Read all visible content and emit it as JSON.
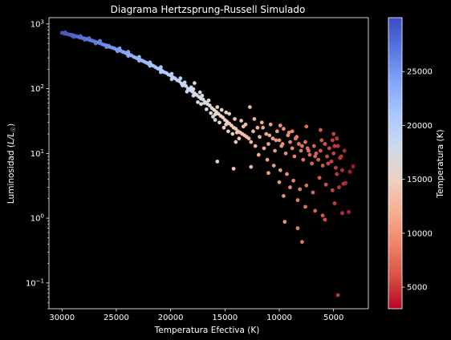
{
  "chart_data": {
    "type": "scatter",
    "title": "Diagrama Hertzsprung-Russell Simulado",
    "xlabel": "Temperatura Efectiva (K)",
    "ylabel": "Luminosidad (",
    "ylabel_math": "L/L",
    "ylabel_sub": "☉",
    "ylabel_close": ")",
    "x_scale": "linear",
    "x_reversed": true,
    "xlim": [
      31200,
      1800
    ],
    "x_ticks": [
      30000,
      25000,
      20000,
      15000,
      10000,
      5000
    ],
    "x_tick_labels": [
      "30000",
      "25000",
      "20000",
      "15000",
      "10000",
      "5000"
    ],
    "y_scale": "log",
    "ylim": [
      0.04,
      1250
    ],
    "y_ticks": [
      0.1,
      1,
      10,
      100,
      1000
    ],
    "y_tick_base": "10",
    "y_tick_exponents": [
      "−1",
      "0",
      "1",
      "2",
      "3"
    ],
    "grid": false,
    "colormap": "coolwarm",
    "colormap_stops": [
      "#b40426",
      "#d65244",
      "#ee8468",
      "#f7af91",
      "#edd1c2",
      "#cdd9ec",
      "#aac7fd",
      "#82a6fb",
      "#5977e3",
      "#3b4cc0"
    ],
    "colorbar": {
      "label": "Temperatura (K)",
      "range": [
        3000,
        30000
      ],
      "ticks": [
        5000,
        10000,
        15000,
        20000,
        25000
      ],
      "tick_labels": [
        "5000",
        "10000",
        "15000",
        "20000",
        "25000"
      ]
    },
    "points": [
      [
        30000,
        730
      ],
      [
        29800,
        710
      ],
      [
        29600,
        700
      ],
      [
        29400,
        690
      ],
      [
        29200,
        680
      ],
      [
        29000,
        670
      ],
      [
        28800,
        650
      ],
      [
        28600,
        640
      ],
      [
        28400,
        620
      ],
      [
        28200,
        610
      ],
      [
        28000,
        600
      ],
      [
        27800,
        590
      ],
      [
        27600,
        575
      ],
      [
        27400,
        560
      ],
      [
        27200,
        550
      ],
      [
        27000,
        535
      ],
      [
        26800,
        520
      ],
      [
        26600,
        510
      ],
      [
        26400,
        495
      ],
      [
        26200,
        480
      ],
      [
        26000,
        470
      ],
      [
        25800,
        455
      ],
      [
        25600,
        440
      ],
      [
        25400,
        430
      ],
      [
        25200,
        420
      ],
      [
        25000,
        405
      ],
      [
        24800,
        395
      ],
      [
        24600,
        385
      ],
      [
        24400,
        370
      ],
      [
        24200,
        360
      ],
      [
        24000,
        345
      ],
      [
        23800,
        335
      ],
      [
        23600,
        325
      ],
      [
        23400,
        310
      ],
      [
        23200,
        300
      ],
      [
        23000,
        290
      ],
      [
        22800,
        280
      ],
      [
        22600,
        270
      ],
      [
        22400,
        260
      ],
      [
        22200,
        250
      ],
      [
        22000,
        240
      ],
      [
        21800,
        235
      ],
      [
        21600,
        225
      ],
      [
        21400,
        215
      ],
      [
        21200,
        205
      ],
      [
        21000,
        200
      ],
      [
        20800,
        190
      ],
      [
        20600,
        180
      ],
      [
        20400,
        175
      ],
      [
        20200,
        165
      ],
      [
        20000,
        160
      ],
      [
        19800,
        150
      ],
      [
        19600,
        145
      ],
      [
        19400,
        135
      ],
      [
        19200,
        130
      ],
      [
        19000,
        120
      ],
      [
        18800,
        115
      ],
      [
        18600,
        110
      ],
      [
        18400,
        100
      ],
      [
        18200,
        95
      ],
      [
        18000,
        90
      ],
      [
        17800,
        85
      ],
      [
        17600,
        80
      ],
      [
        17400,
        75
      ],
      [
        17200,
        70
      ],
      [
        17000,
        68
      ],
      [
        16800,
        62
      ],
      [
        16600,
        58
      ],
      [
        16400,
        55
      ],
      [
        16200,
        50
      ],
      [
        16000,
        47
      ],
      [
        15800,
        44
      ],
      [
        15600,
        41
      ],
      [
        15400,
        38
      ],
      [
        15200,
        36
      ],
      [
        15000,
        33
      ],
      [
        14800,
        31
      ],
      [
        14600,
        29
      ],
      [
        14400,
        27
      ],
      [
        14200,
        25
      ],
      [
        14000,
        24
      ],
      [
        13800,
        22
      ],
      [
        13600,
        21
      ],
      [
        13400,
        20
      ],
      [
        13200,
        19
      ],
      [
        13000,
        18
      ],
      [
        12800,
        17
      ],
      [
        29700,
        740
      ],
      [
        29100,
        660
      ],
      [
        28300,
        650
      ],
      [
        27500,
        600
      ],
      [
        26500,
        545
      ],
      [
        25700,
        460
      ],
      [
        24700,
        420
      ],
      [
        23900,
        370
      ],
      [
        22900,
        310
      ],
      [
        21900,
        255
      ],
      [
        20900,
        215
      ],
      [
        19900,
        170
      ],
      [
        19100,
        145
      ],
      [
        18100,
        105
      ],
      [
        17300,
        88
      ],
      [
        16500,
        66
      ],
      [
        15700,
        52
      ],
      [
        14900,
        43
      ],
      [
        14100,
        34
      ],
      [
        13300,
        26
      ],
      [
        28900,
        630
      ],
      [
        27900,
        570
      ],
      [
        26900,
        500
      ],
      [
        25900,
        440
      ],
      [
        24900,
        380
      ],
      [
        23900,
        320
      ],
      [
        22900,
        270
      ],
      [
        21900,
        225
      ],
      [
        20900,
        180
      ],
      [
        19900,
        140
      ],
      [
        18900,
        112
      ],
      [
        17900,
        78
      ],
      [
        16900,
        60
      ],
      [
        15900,
        40
      ],
      [
        14900,
        28
      ],
      [
        13900,
        21
      ],
      [
        18700,
        125
      ],
      [
        18500,
        90
      ],
      [
        17900,
        98
      ],
      [
        17500,
        62
      ],
      [
        17100,
        78
      ],
      [
        16700,
        48
      ],
      [
        16300,
        42
      ],
      [
        15900,
        33
      ],
      [
        15500,
        30
      ],
      [
        15300,
        47
      ],
      [
        14700,
        22
      ],
      [
        14300,
        20
      ],
      [
        13700,
        17
      ],
      [
        13500,
        32
      ],
      [
        17800,
        122
      ],
      [
        17200,
        58
      ],
      [
        16100,
        37
      ],
      [
        15100,
        25
      ],
      [
        14600,
        41
      ],
      [
        14000,
        15
      ],
      [
        13100,
        28
      ],
      [
        12700,
        52
      ],
      [
        12600,
        15
      ],
      [
        12400,
        22
      ],
      [
        12200,
        13
      ],
      [
        12000,
        25
      ],
      [
        11800,
        18
      ],
      [
        11600,
        30
      ],
      [
        11400,
        12
      ],
      [
        11200,
        20
      ],
      [
        11000,
        14
      ],
      [
        10800,
        28
      ],
      [
        10600,
        17
      ],
      [
        10400,
        11
      ],
      [
        10200,
        22
      ],
      [
        10000,
        16
      ],
      [
        9800,
        13
      ],
      [
        9600,
        24
      ],
      [
        9400,
        10
      ],
      [
        9200,
        19
      ],
      [
        9000,
        15
      ],
      [
        8800,
        12
      ],
      [
        8600,
        9
      ],
      [
        8400,
        18
      ],
      [
        8200,
        14
      ],
      [
        8000,
        11
      ],
      [
        7800,
        8
      ],
      [
        7600,
        15
      ],
      [
        7400,
        12
      ],
      [
        7200,
        9.5
      ],
      [
        7000,
        7
      ],
      [
        6800,
        13
      ],
      [
        6600,
        10
      ],
      [
        6400,
        8
      ],
      [
        6200,
        11
      ],
      [
        6000,
        6.5
      ],
      [
        5800,
        14
      ],
      [
        5600,
        9
      ],
      [
        5400,
        12
      ],
      [
        5200,
        7.5
      ],
      [
        5000,
        10
      ],
      [
        4800,
        6
      ],
      [
        4600,
        13
      ],
      [
        4400,
        8.5
      ],
      [
        4200,
        5.5
      ],
      [
        4000,
        11
      ],
      [
        12300,
        34
      ],
      [
        11500,
        25
      ],
      [
        10900,
        19
      ],
      [
        10300,
        16
      ],
      [
        9700,
        14
      ],
      [
        9100,
        21
      ],
      [
        8500,
        17
      ],
      [
        7900,
        13
      ],
      [
        7300,
        11
      ],
      [
        6700,
        9
      ],
      [
        6100,
        16
      ],
      [
        5500,
        7
      ],
      [
        4900,
        13
      ],
      [
        4300,
        9
      ],
      [
        11900,
        9.5
      ],
      [
        11100,
        8
      ],
      [
        10500,
        6.5
      ],
      [
        9900,
        5.5
      ],
      [
        9300,
        4.8
      ],
      [
        8700,
        3.8
      ],
      [
        8100,
        2.8
      ],
      [
        7500,
        3.2
      ],
      [
        6900,
        2.5
      ],
      [
        6300,
        4.2
      ],
      [
        5700,
        3.3
      ],
      [
        5100,
        2.7
      ],
      [
        4700,
        4.8
      ],
      [
        4100,
        3.4
      ],
      [
        15700,
        7.5
      ],
      [
        14200,
        5.8
      ],
      [
        12600,
        6.2
      ],
      [
        11000,
        5.0
      ],
      [
        9600,
        2.2
      ],
      [
        9000,
        3.0
      ],
      [
        8300,
        1.9
      ],
      [
        7600,
        1.5
      ],
      [
        6700,
        1.3
      ],
      [
        6000,
        1.1
      ],
      [
        4900,
        1.7
      ],
      [
        4200,
        1.2
      ],
      [
        3600,
        1.25
      ],
      [
        3200,
        6.3
      ],
      [
        9500,
        0.88
      ],
      [
        8300,
        0.7
      ],
      [
        7900,
        0.43
      ],
      [
        5800,
        0.95
      ],
      [
        4500,
        3.0
      ],
      [
        3900,
        3.5
      ],
      [
        3500,
        5.2
      ],
      [
        10000,
        3.6
      ],
      [
        4600,
        0.065
      ],
      [
        9900,
        27
      ],
      [
        8800,
        22
      ],
      [
        7500,
        26
      ],
      [
        6200,
        23
      ],
      [
        5100,
        16
      ],
      [
        5000,
        20
      ],
      [
        4700,
        17
      ]
    ]
  }
}
